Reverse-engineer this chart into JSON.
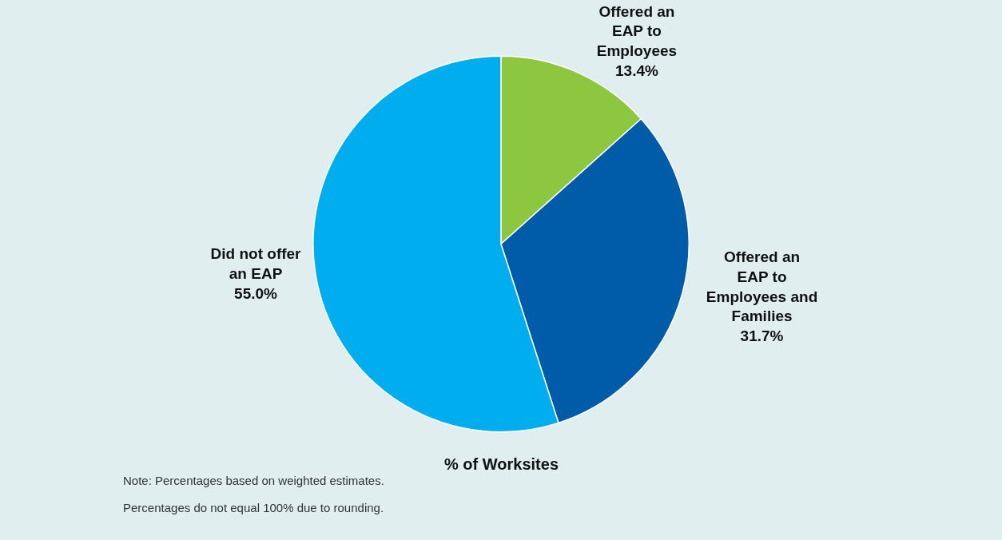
{
  "chart_data": {
    "type": "pie",
    "title": "% of Worksites",
    "categories": [
      "Offered an EAP to Employees",
      "Offered an EAP to Employees and Families",
      "Did not offer an EAP"
    ],
    "values": [
      13.4,
      31.7,
      55.0
    ],
    "value_labels": [
      "13.4%",
      "31.7%",
      "55.0%"
    ],
    "colors": [
      "#8dc63f",
      "#005ba8",
      "#00aeef"
    ],
    "annotations": [
      "Note: Percentages based on weighted estimates.",
      "Percentages do not equal 100% due to rounding."
    ],
    "legend": false
  }
}
